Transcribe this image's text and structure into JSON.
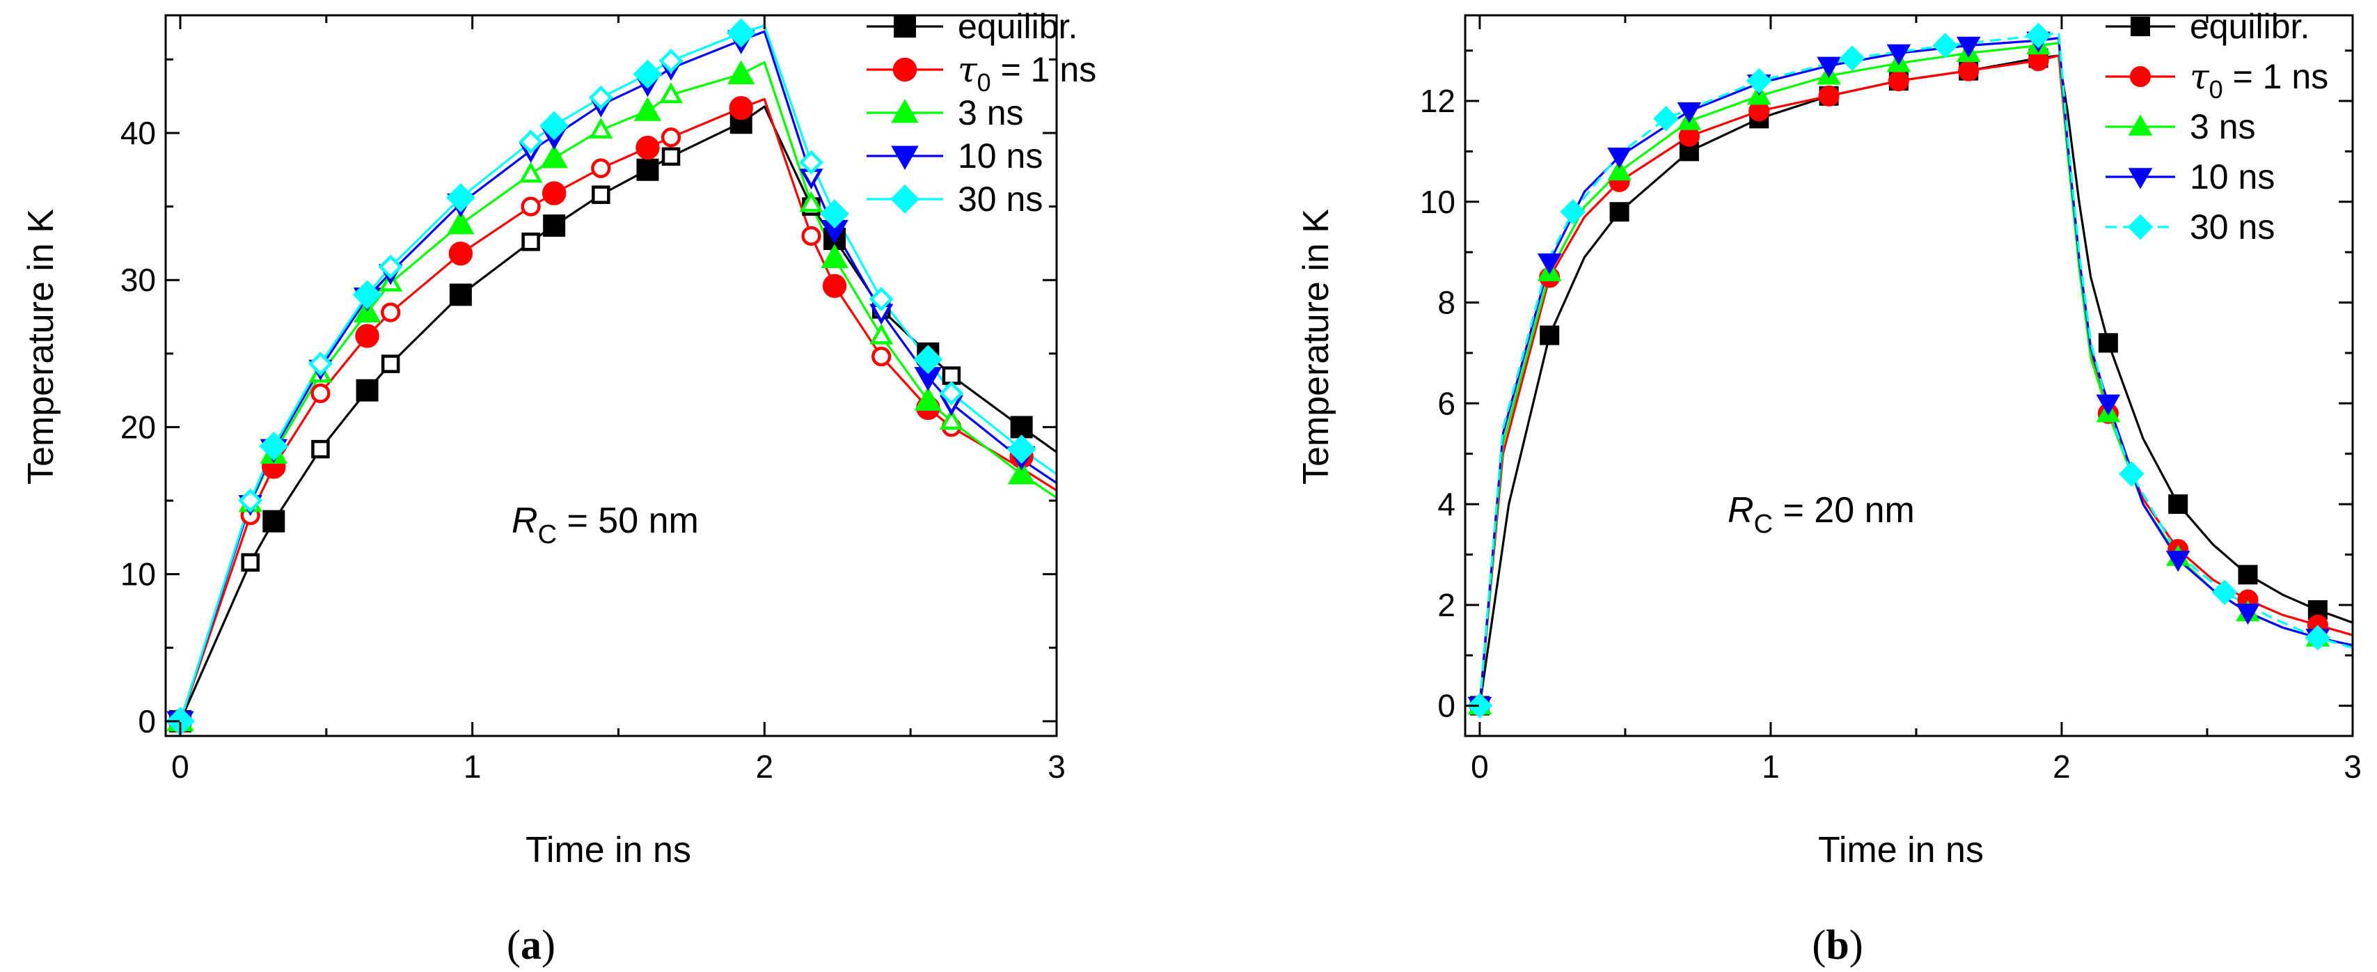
{
  "panels": [
    {
      "panel_label": {
        "open": "(",
        "letter": "a",
        "close": ")"
      },
      "annotation": {
        "symbol": "R",
        "subscript": "C",
        "text": " = 50 nm"
      },
      "chart_data": {
        "type": "line",
        "xlabel": "Time in ns",
        "ylabel": "Temperature in K",
        "xlim": [
          -0.05,
          3.0
        ],
        "ylim": [
          -1,
          48
        ],
        "xticks": [
          0,
          1,
          2,
          3
        ],
        "yticks": [
          0,
          10,
          20,
          30,
          40
        ],
        "grid": false,
        "legend_position": "top-right",
        "series": [
          {
            "name": "equilibr.",
            "label_math": false,
            "color": "#000000",
            "marker": "square",
            "x": [
              0,
              0.32,
              0.64,
              0.96,
              1.28,
              1.6,
              1.92,
              2.24,
              2.56,
              2.88
            ],
            "y": [
              0,
              13.6,
              22.5,
              29.0,
              33.7,
              37.5,
              40.7,
              32.8,
              25.0,
              20.0
            ],
            "mx": [
              0.24,
              0.48,
              0.72,
              1.2,
              1.44,
              1.68,
              2.16,
              2.4,
              2.64
            ],
            "my": [
              10.8,
              18.5,
              24.3,
              32.6,
              35.8,
              38.4,
              35.0,
              28.0,
              23.5
            ],
            "line_x": [
              0,
              0.24,
              0.32,
              0.48,
              0.64,
              0.72,
              0.96,
              1.2,
              1.28,
              1.44,
              1.6,
              1.68,
              1.92,
              2.0,
              2.16,
              2.24,
              2.4,
              2.56,
              2.64,
              2.88,
              3.0
            ],
            "line_y": [
              0,
              10.8,
              13.6,
              18.5,
              22.5,
              24.3,
              29.0,
              32.6,
              33.7,
              35.8,
              37.5,
              38.4,
              40.7,
              41.8,
              35.0,
              32.8,
              28.0,
              25.0,
              23.5,
              20.0,
              18.3
            ]
          },
          {
            "name": "τ0 = 1 ns",
            "label_math": true,
            "label_parts": {
              "sym": "τ",
              "sub": "0",
              "rest": " = 1 ns"
            },
            "color": "#ff0000",
            "marker": "circle",
            "x": [
              0,
              0.32,
              0.64,
              0.96,
              1.28,
              1.6,
              1.92,
              2.24,
              2.56,
              2.88
            ],
            "y": [
              0,
              17.3,
              26.2,
              31.8,
              35.9,
              39.0,
              41.7,
              29.6,
              21.3,
              18.0
            ],
            "mx": [
              0.24,
              0.48,
              0.72,
              1.2,
              1.44,
              1.68,
              2.16,
              2.4,
              2.64
            ],
            "my": [
              14.0,
              22.3,
              27.8,
              35.0,
              37.6,
              39.7,
              33.0,
              24.8,
              20.0
            ],
            "line_x": [
              0,
              0.24,
              0.32,
              0.48,
              0.64,
              0.72,
              0.96,
              1.2,
              1.28,
              1.44,
              1.6,
              1.68,
              1.92,
              2.0,
              2.16,
              2.24,
              2.4,
              2.56,
              2.64,
              2.88,
              3.0
            ],
            "line_y": [
              0,
              14.0,
              17.3,
              22.3,
              26.2,
              27.8,
              31.8,
              35.0,
              35.9,
              37.6,
              39.0,
              39.7,
              41.7,
              42.3,
              33.0,
              29.6,
              24.8,
              21.3,
              20.0,
              17.2,
              15.7
            ]
          },
          {
            "name": "3 ns",
            "label_math": false,
            "color": "#00ff00",
            "marker": "triangle-up",
            "x": [
              0,
              0.32,
              0.64,
              0.96,
              1.28,
              1.6,
              1.92,
              2.24,
              2.56,
              2.88
            ],
            "y": [
              0,
              18.2,
              27.8,
              33.8,
              38.3,
              41.5,
              44.0,
              31.5,
              21.8,
              16.8
            ],
            "mx": [
              0.24,
              0.48,
              0.72,
              1.2,
              1.44,
              1.68,
              2.16,
              2.4,
              2.64
            ],
            "my": [
              14.8,
              23.6,
              29.8,
              37.2,
              40.2,
              42.6,
              35.2,
              26.2,
              20.4
            ],
            "line_x": [
              0,
              0.24,
              0.32,
              0.48,
              0.64,
              0.72,
              0.96,
              1.2,
              1.28,
              1.44,
              1.6,
              1.68,
              1.92,
              2.0,
              2.16,
              2.24,
              2.4,
              2.56,
              2.64,
              2.88,
              3.0
            ],
            "line_y": [
              0,
              14.8,
              18.2,
              23.6,
              27.8,
              29.8,
              33.8,
              37.2,
              38.3,
              40.2,
              41.5,
              42.6,
              44.0,
              44.8,
              35.2,
              31.5,
              26.2,
              21.8,
              20.4,
              16.8,
              15.2
            ]
          },
          {
            "name": "10 ns",
            "label_math": false,
            "color": "#0000ff",
            "marker": "triangle-down",
            "x": [
              0,
              0.32,
              0.64,
              0.96,
              1.28,
              1.6,
              1.92,
              2.24,
              2.56,
              2.88
            ],
            "y": [
              0,
              18.5,
              28.8,
              35.2,
              39.8,
              43.4,
              46.3,
              33.4,
              23.4,
              18.0
            ],
            "mx": [
              0.24,
              0.48,
              0.72,
              1.2,
              1.44,
              1.68,
              2.16,
              2.4,
              2.64
            ],
            "my": [
              14.8,
              24.0,
              30.5,
              38.8,
              41.9,
              44.4,
              37.0,
              27.8,
              21.6
            ],
            "line_x": [
              0,
              0.24,
              0.32,
              0.48,
              0.64,
              0.72,
              0.96,
              1.2,
              1.28,
              1.44,
              1.6,
              1.68,
              1.92,
              2.0,
              2.16,
              2.24,
              2.4,
              2.56,
              2.64,
              2.88,
              3.0
            ],
            "line_y": [
              0,
              14.8,
              18.5,
              24.0,
              28.8,
              30.5,
              35.2,
              38.8,
              39.8,
              41.9,
              43.4,
              44.4,
              46.3,
              46.9,
              37.0,
              33.4,
              27.8,
              23.4,
              21.6,
              17.8,
              16.2
            ]
          },
          {
            "name": "30 ns",
            "label_math": false,
            "color": "#00ffff",
            "marker": "diamond",
            "x": [
              0,
              0.32,
              0.64,
              0.96,
              1.28,
              1.6,
              1.92,
              2.24,
              2.56,
              2.88
            ],
            "y": [
              0,
              18.7,
              29.0,
              35.6,
              40.5,
              44.0,
              46.8,
              34.5,
              24.6,
              18.5
            ],
            "mx": [
              0.24,
              0.48,
              0.72,
              1.2,
              1.44,
              1.68,
              2.16,
              2.4,
              2.64
            ],
            "my": [
              15.0,
              24.3,
              30.9,
              39.4,
              42.4,
              44.9,
              38.0,
              28.7,
              22.3
            ],
            "line_x": [
              0,
              0.24,
              0.32,
              0.48,
              0.64,
              0.72,
              0.96,
              1.2,
              1.28,
              1.44,
              1.6,
              1.68,
              1.92,
              2.0,
              2.16,
              2.24,
              2.4,
              2.56,
              2.64,
              2.88,
              3.0
            ],
            "line_y": [
              0,
              15.0,
              18.7,
              24.3,
              29.0,
              30.9,
              35.6,
              39.4,
              40.5,
              42.4,
              44.0,
              44.9,
              46.8,
              47.3,
              38.0,
              34.5,
              28.7,
              24.6,
              22.3,
              18.5,
              16.8
            ]
          }
        ]
      }
    },
    {
      "panel_label": {
        "open": "(",
        "letter": "b",
        "close": ")"
      },
      "annotation": {
        "symbol": "R",
        "subscript": "C",
        "text": " = 20 nm"
      },
      "chart_data": {
        "type": "line",
        "xlabel": "Time in ns",
        "ylabel": "Temperature in K",
        "xlim": [
          -0.05,
          3.0
        ],
        "ylim": [
          -0.6,
          13.7
        ],
        "xticks": [
          0,
          1,
          2,
          3
        ],
        "yticks": [
          0,
          2,
          4,
          6,
          8,
          10,
          12
        ],
        "grid": false,
        "legend_position": "top-right",
        "series": [
          {
            "name": "equilibr.",
            "label_math": false,
            "color": "#000000",
            "marker": "square",
            "x": [
              0,
              0.24,
              0.48,
              0.72,
              0.96,
              1.2,
              1.44,
              1.68,
              1.92,
              2.16,
              2.4,
              2.64,
              2.88
            ],
            "y": [
              0,
              7.35,
              9.8,
              11.0,
              11.65,
              12.1,
              12.4,
              12.6,
              12.85,
              7.2,
              4.0,
              2.6,
              1.9
            ],
            "line_x": [
              0,
              0.1,
              0.24,
              0.36,
              0.48,
              0.72,
              0.96,
              1.2,
              1.44,
              1.68,
              1.92,
              1.99,
              2.02,
              2.06,
              2.1,
              2.16,
              2.28,
              2.4,
              2.52,
              2.64,
              2.76,
              2.88,
              3.0
            ],
            "line_y": [
              0,
              4.0,
              7.35,
              8.9,
              9.8,
              11.0,
              11.65,
              12.1,
              12.4,
              12.6,
              12.85,
              12.9,
              11.8,
              10.0,
              8.5,
              7.2,
              5.3,
              4.0,
              3.2,
              2.6,
              2.2,
              1.9,
              1.65
            ]
          },
          {
            "name": "τ0 = 1 ns",
            "label_math": true,
            "label_parts": {
              "sym": "τ",
              "sub": "0",
              "rest": " = 1 ns"
            },
            "color": "#ff0000",
            "marker": "circle",
            "x": [
              0,
              0.24,
              0.48,
              0.72,
              0.96,
              1.2,
              1.44,
              1.68,
              1.92,
              2.16,
              2.4,
              2.64,
              2.88
            ],
            "y": [
              0,
              8.5,
              10.4,
              11.3,
              11.8,
              12.1,
              12.4,
              12.6,
              12.8,
              5.8,
              3.1,
              2.1,
              1.6
            ],
            "line_x": [
              0,
              0.08,
              0.24,
              0.36,
              0.48,
              0.72,
              0.96,
              1.2,
              1.44,
              1.68,
              1.92,
              1.99,
              2.02,
              2.06,
              2.1,
              2.16,
              2.28,
              2.4,
              2.52,
              2.64,
              2.76,
              2.88,
              3.0
            ],
            "line_y": [
              0,
              5.0,
              8.5,
              9.7,
              10.4,
              11.3,
              11.8,
              12.1,
              12.4,
              12.6,
              12.8,
              12.9,
              11.0,
              8.8,
              7.0,
              5.8,
              4.1,
              3.1,
              2.5,
              2.1,
              1.8,
              1.6,
              1.4
            ]
          },
          {
            "name": "3 ns",
            "label_math": false,
            "color": "#00ff00",
            "marker": "triangle-up",
            "x": [
              0,
              0.24,
              0.48,
              0.72,
              0.96,
              1.2,
              1.44,
              1.68,
              1.92,
              2.16,
              2.4,
              2.64,
              2.88
            ],
            "y": [
              0,
              8.6,
              10.6,
              11.6,
              12.1,
              12.5,
              12.75,
              12.95,
              13.1,
              5.8,
              2.95,
              1.85,
              1.35
            ],
            "line_x": [
              0,
              0.08,
              0.24,
              0.36,
              0.48,
              0.72,
              0.96,
              1.2,
              1.44,
              1.68,
              1.92,
              1.99,
              2.02,
              2.06,
              2.1,
              2.16,
              2.28,
              2.4,
              2.52,
              2.64,
              2.76,
              2.88,
              3.0
            ],
            "line_y": [
              0,
              5.2,
              8.6,
              9.9,
              10.6,
              11.6,
              12.1,
              12.5,
              12.75,
              12.95,
              13.1,
              13.15,
              11.0,
              8.7,
              6.9,
              5.8,
              4.0,
              2.95,
              2.3,
              1.85,
              1.55,
              1.35,
              1.2
            ]
          },
          {
            "name": "10 ns",
            "label_math": false,
            "color": "#0000ff",
            "marker": "triangle-down",
            "x": [
              0,
              0.24,
              0.48,
              0.72,
              0.96,
              1.2,
              1.44,
              1.68,
              1.92,
              2.16,
              2.4,
              2.64,
              2.88
            ],
            "y": [
              0,
              8.8,
              10.9,
              11.8,
              12.35,
              12.7,
              12.95,
              13.1,
              13.2,
              6.0,
              2.9,
              1.85,
              1.35
            ],
            "line_x": [
              0,
              0.08,
              0.24,
              0.36,
              0.48,
              0.72,
              0.96,
              1.2,
              1.44,
              1.68,
              1.92,
              1.99,
              2.02,
              2.06,
              2.1,
              2.16,
              2.28,
              2.4,
              2.52,
              2.64,
              2.76,
              2.88,
              3.0
            ],
            "line_y": [
              0,
              5.4,
              8.8,
              10.2,
              10.9,
              11.8,
              12.35,
              12.7,
              12.95,
              13.1,
              13.2,
              13.25,
              11.2,
              8.9,
              7.1,
              6.0,
              4.0,
              2.9,
              2.3,
              1.85,
              1.55,
              1.35,
              1.2
            ]
          },
          {
            "name": "30 ns",
            "label_math": false,
            "color": "#00ffff",
            "marker": "diamond",
            "dashed": true,
            "x": [
              0,
              0.32,
              0.64,
              0.96,
              1.28,
              1.6,
              1.92,
              2.24,
              2.56,
              2.88
            ],
            "y": [
              0,
              9.8,
              11.65,
              12.4,
              12.85,
              13.1,
              13.3,
              4.6,
              2.25,
              1.35
            ],
            "line_x": [
              0,
              0.08,
              0.24,
              0.32,
              0.48,
              0.64,
              0.96,
              1.28,
              1.6,
              1.92,
              1.99,
              2.02,
              2.06,
              2.1,
              2.16,
              2.24,
              2.4,
              2.56,
              2.72,
              2.88,
              3.0
            ],
            "line_y": [
              0,
              5.5,
              8.9,
              9.8,
              10.95,
              11.65,
              12.4,
              12.85,
              13.1,
              13.3,
              13.35,
              11.3,
              9.0,
              7.2,
              5.9,
              4.6,
              3.0,
              2.25,
              1.75,
              1.35,
              1.15
            ]
          }
        ]
      }
    }
  ]
}
